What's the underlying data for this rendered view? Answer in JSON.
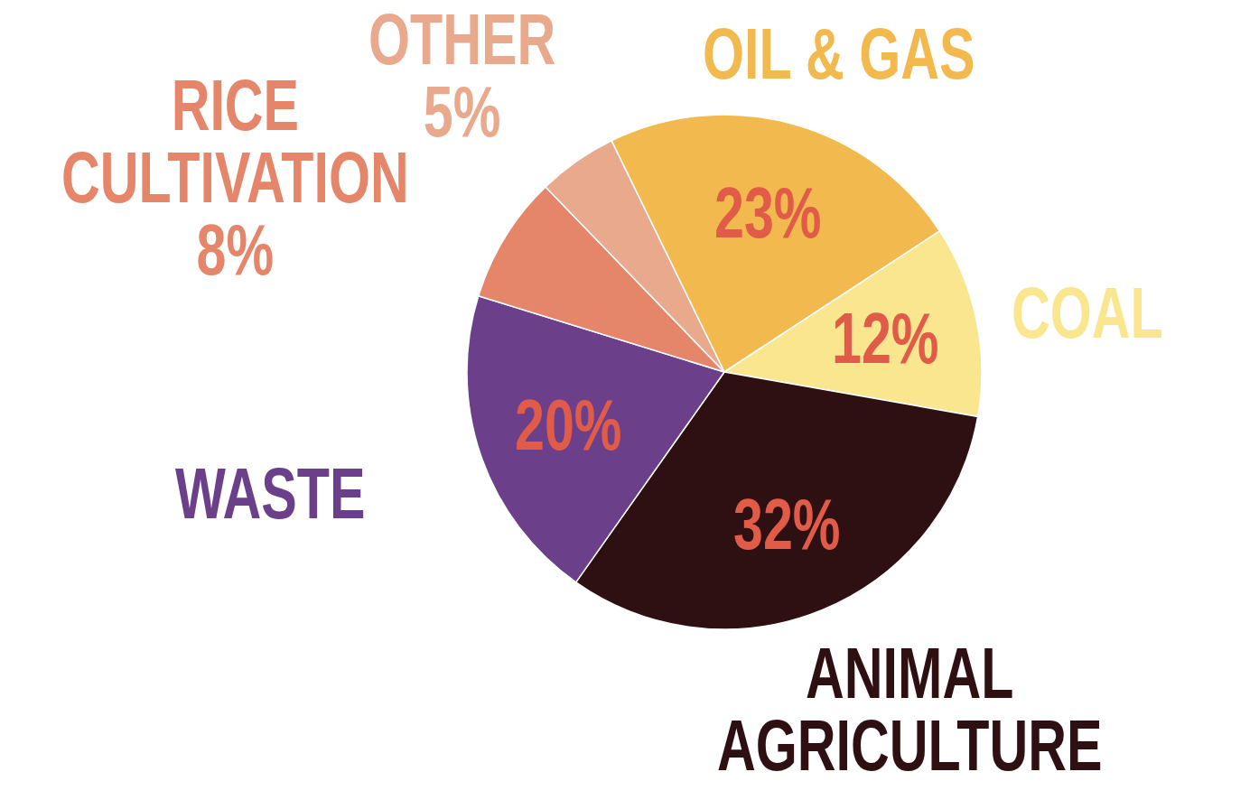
{
  "chart_data": {
    "type": "pie",
    "categories": [
      "OIL & GAS",
      "COAL",
      "ANIMAL AGRICULTURE",
      "WASTE",
      "RICE CULTIVATION",
      "OTHER"
    ],
    "values": [
      23,
      12,
      32,
      20,
      8,
      5
    ],
    "colors": [
      "#f2b94f",
      "#fae68f",
      "#2e1012",
      "#6b3f8a",
      "#e5866a",
      "#e9a98c"
    ],
    "value_labels": [
      "23%",
      "12%",
      "32%",
      "20%",
      "8%",
      "5%"
    ]
  }
}
